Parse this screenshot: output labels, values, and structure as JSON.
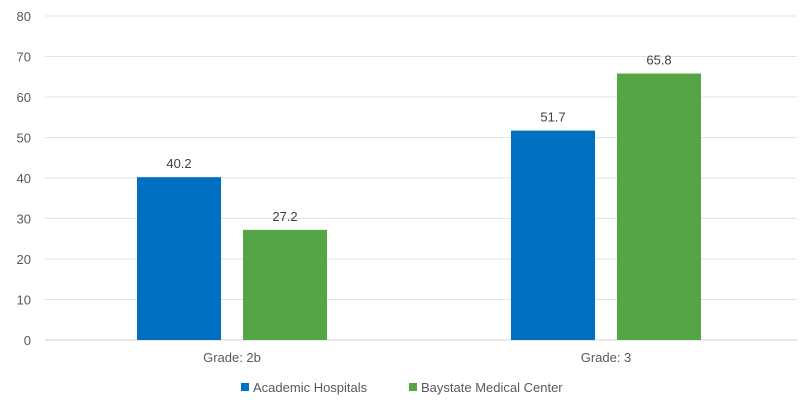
{
  "chart_data": {
    "type": "bar",
    "categories": [
      "Grade: 2b",
      "Grade: 3"
    ],
    "series": [
      {
        "name": "Academic Hospitals",
        "values": [
          40.2,
          51.7
        ],
        "color": "#0070C0"
      },
      {
        "name": "Baystate Medical Center",
        "values": [
          27.2,
          65.8
        ],
        "color": "#56A545"
      }
    ],
    "data_labels": [
      [
        "40.2",
        "51.7"
      ],
      [
        "27.2",
        "65.8"
      ]
    ],
    "yticks": [
      "0",
      "10",
      "20",
      "30",
      "40",
      "50",
      "60",
      "70",
      "80"
    ],
    "ylim": [
      0,
      80
    ],
    "grid": true,
    "legend": "bottom",
    "title": "",
    "xlabel": "",
    "ylabel": ""
  }
}
